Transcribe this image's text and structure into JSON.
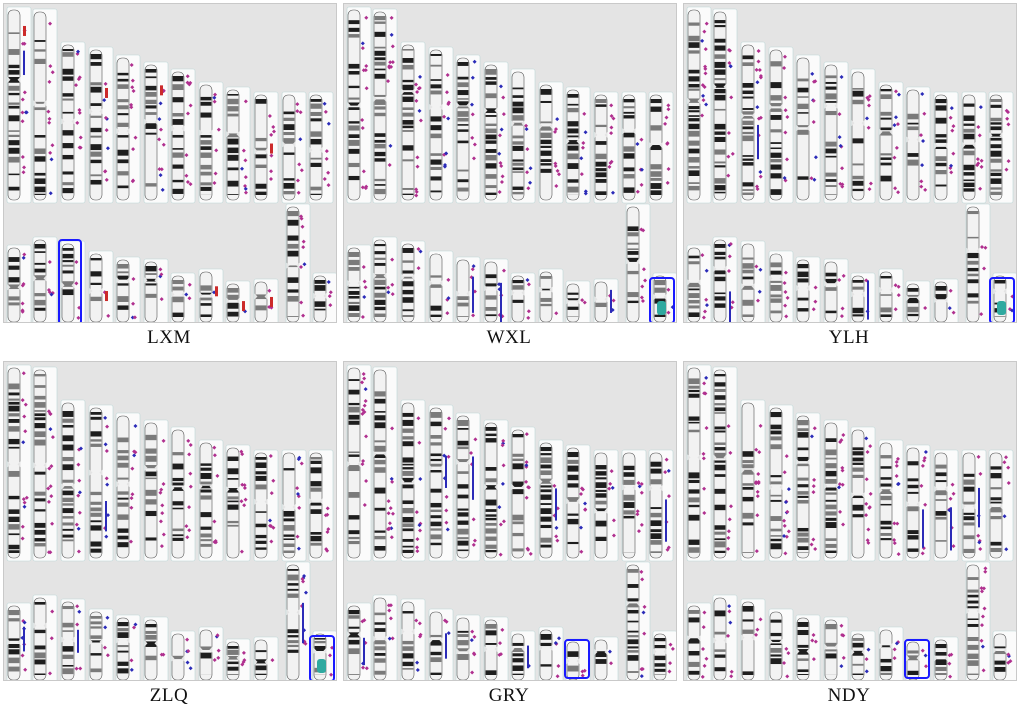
{
  "panels": [
    {
      "label": "LXM",
      "highlight": "row2-3",
      "has_red_tracks": true
    },
    {
      "label": "WXL",
      "highlight": "last",
      "has_red_tracks": false
    },
    {
      "label": "YLH",
      "highlight": "last",
      "has_red_tracks": false
    },
    {
      "label": "ZLQ",
      "highlight": "last",
      "has_red_tracks": false
    },
    {
      "label": "GRY",
      "highlight": "row2-9",
      "has_red_tracks": false
    },
    {
      "label": "NDY",
      "highlight": "row2-9",
      "has_red_tracks": false
    }
  ],
  "colors": {
    "panel_bg": "#e4e4e4",
    "highlight_box": "#1a1aff",
    "marker_gain": "#b0308f",
    "marker_loss": "#2b2bb8",
    "marker_red": "#cc2a2a",
    "band_dark": "#1e1e1e",
    "band_mid": "#7a7a7a",
    "band_light": "#f2f2f2"
  }
}
